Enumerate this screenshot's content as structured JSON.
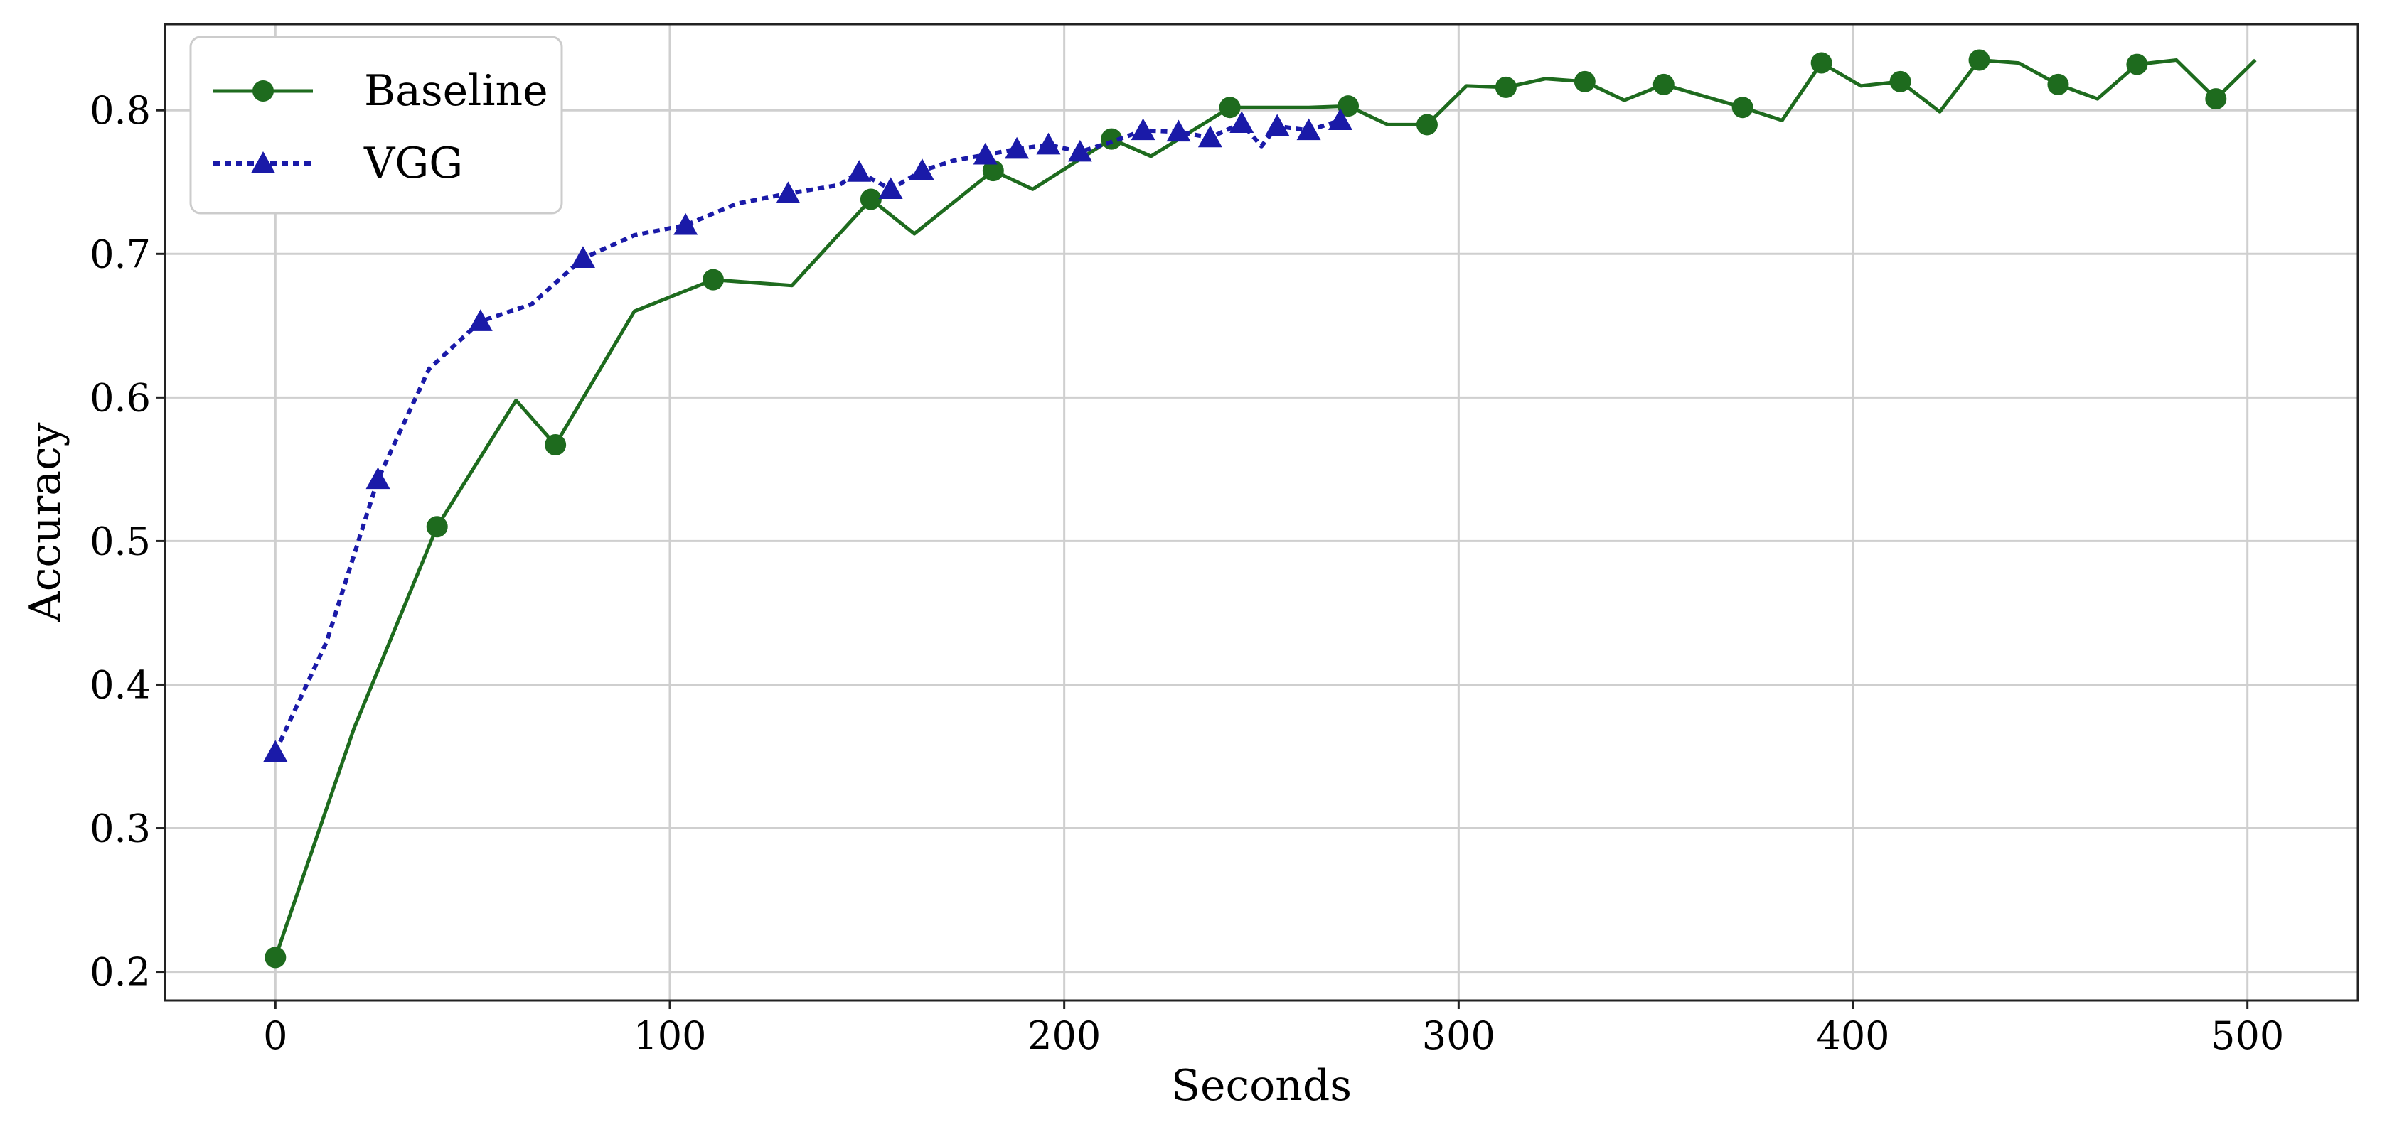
{
  "chart_data": {
    "type": "line",
    "title": "",
    "xlabel": "Seconds",
    "ylabel": "Accuracy",
    "xlim": [
      -28,
      528
    ],
    "ylim": [
      0.18,
      0.86
    ],
    "xticks": [
      0,
      100,
      200,
      300,
      400,
      500
    ],
    "yticks": [
      0.2,
      0.3,
      0.4,
      0.5,
      0.6,
      0.7,
      0.8
    ],
    "xtick_labels": [
      "0",
      "100",
      "200",
      "300",
      "400",
      "500"
    ],
    "ytick_labels": [
      "0.2",
      "0.3",
      "0.4",
      "0.5",
      "0.6",
      "0.7",
      "0.8"
    ],
    "grid": true,
    "legend_position": "top-left",
    "series": [
      {
        "name": "Baseline",
        "color": "#1e6b1e",
        "line_style": "solid",
        "marker": "circle",
        "points": [
          {
            "x": 0,
            "y": 0.21,
            "marker": true
          },
          {
            "x": 20,
            "y": 0.37,
            "marker": false
          },
          {
            "x": 41,
            "y": 0.51,
            "marker": true
          },
          {
            "x": 61,
            "y": 0.598,
            "marker": false
          },
          {
            "x": 71,
            "y": 0.567,
            "marker": true
          },
          {
            "x": 91,
            "y": 0.66,
            "marker": false
          },
          {
            "x": 111,
            "y": 0.682,
            "marker": true
          },
          {
            "x": 131,
            "y": 0.678,
            "marker": false
          },
          {
            "x": 151,
            "y": 0.738,
            "marker": true
          },
          {
            "x": 162,
            "y": 0.714,
            "marker": false
          },
          {
            "x": 182,
            "y": 0.758,
            "marker": true
          },
          {
            "x": 192,
            "y": 0.745,
            "marker": false
          },
          {
            "x": 212,
            "y": 0.78,
            "marker": true
          },
          {
            "x": 222,
            "y": 0.768,
            "marker": false
          },
          {
            "x": 242,
            "y": 0.802,
            "marker": true
          },
          {
            "x": 262,
            "y": 0.802,
            "marker": false
          },
          {
            "x": 272,
            "y": 0.803,
            "marker": true
          },
          {
            "x": 282,
            "y": 0.79,
            "marker": false
          },
          {
            "x": 292,
            "y": 0.79,
            "marker": true
          },
          {
            "x": 302,
            "y": 0.817,
            "marker": false
          },
          {
            "x": 312,
            "y": 0.816,
            "marker": true
          },
          {
            "x": 322,
            "y": 0.822,
            "marker": false
          },
          {
            "x": 332,
            "y": 0.82,
            "marker": true
          },
          {
            "x": 342,
            "y": 0.807,
            "marker": false
          },
          {
            "x": 352,
            "y": 0.818,
            "marker": true
          },
          {
            "x": 372,
            "y": 0.802,
            "marker": true
          },
          {
            "x": 382,
            "y": 0.793,
            "marker": false
          },
          {
            "x": 392,
            "y": 0.833,
            "marker": true
          },
          {
            "x": 402,
            "y": 0.817,
            "marker": false
          },
          {
            "x": 412,
            "y": 0.82,
            "marker": true
          },
          {
            "x": 422,
            "y": 0.799,
            "marker": false
          },
          {
            "x": 432,
            "y": 0.835,
            "marker": true
          },
          {
            "x": 442,
            "y": 0.833,
            "marker": false
          },
          {
            "x": 452,
            "y": 0.818,
            "marker": true
          },
          {
            "x": 462,
            "y": 0.808,
            "marker": false
          },
          {
            "x": 472,
            "y": 0.832,
            "marker": true
          },
          {
            "x": 482,
            "y": 0.835,
            "marker": false
          },
          {
            "x": 492,
            "y": 0.808,
            "marker": true
          },
          {
            "x": 502,
            "y": 0.835,
            "marker": false
          }
        ]
      },
      {
        "name": "VGG",
        "color": "#1a1aa8",
        "line_style": "dotted",
        "marker": "triangle",
        "points": [
          {
            "x": 0,
            "y": 0.353,
            "marker": true
          },
          {
            "x": 13,
            "y": 0.43,
            "marker": false
          },
          {
            "x": 26,
            "y": 0.543,
            "marker": true
          },
          {
            "x": 39,
            "y": 0.62,
            "marker": false
          },
          {
            "x": 52,
            "y": 0.653,
            "marker": true
          },
          {
            "x": 65,
            "y": 0.665,
            "marker": false
          },
          {
            "x": 78,
            "y": 0.697,
            "marker": true
          },
          {
            "x": 91,
            "y": 0.713,
            "marker": false
          },
          {
            "x": 104,
            "y": 0.72,
            "marker": true
          },
          {
            "x": 117,
            "y": 0.735,
            "marker": false
          },
          {
            "x": 130,
            "y": 0.742,
            "marker": true
          },
          {
            "x": 143,
            "y": 0.748,
            "marker": false
          },
          {
            "x": 148,
            "y": 0.757,
            "marker": true
          },
          {
            "x": 156,
            "y": 0.745,
            "marker": true
          },
          {
            "x": 164,
            "y": 0.758,
            "marker": true
          },
          {
            "x": 172,
            "y": 0.765,
            "marker": false
          },
          {
            "x": 180,
            "y": 0.769,
            "marker": true
          },
          {
            "x": 188,
            "y": 0.773,
            "marker": true
          },
          {
            "x": 196,
            "y": 0.776,
            "marker": true
          },
          {
            "x": 204,
            "y": 0.771,
            "marker": true
          },
          {
            "x": 212,
            "y": 0.778,
            "marker": false
          },
          {
            "x": 220,
            "y": 0.786,
            "marker": true
          },
          {
            "x": 229,
            "y": 0.785,
            "marker": true
          },
          {
            "x": 237,
            "y": 0.781,
            "marker": true
          },
          {
            "x": 245,
            "y": 0.791,
            "marker": true
          },
          {
            "x": 250,
            "y": 0.775,
            "marker": false
          },
          {
            "x": 254,
            "y": 0.789,
            "marker": true
          },
          {
            "x": 262,
            "y": 0.786,
            "marker": true
          },
          {
            "x": 270,
            "y": 0.793,
            "marker": true
          }
        ]
      }
    ]
  }
}
